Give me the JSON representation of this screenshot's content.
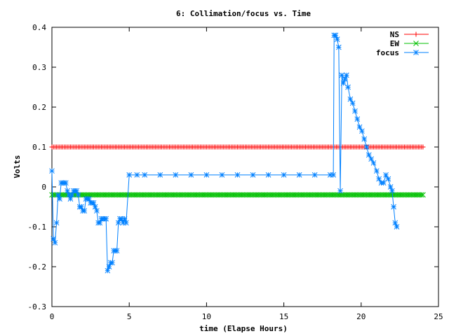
{
  "chart_data": {
    "type": "line",
    "title": "6: Collimation/focus vs. Time",
    "xlabel": "time (Elapse Hours)",
    "ylabel": "Volts",
    "xlim": [
      0,
      25
    ],
    "ylim": [
      -0.3,
      0.4
    ],
    "xticks": [
      "0",
      "5",
      "10",
      "15",
      "20",
      "25"
    ],
    "yticks": [
      "-0.3",
      "-0.2",
      "-0.1",
      "0",
      "0.1",
      "0.2",
      "0.3",
      "0.4"
    ],
    "grid": false,
    "legend_position": "top-right",
    "series": [
      {
        "name": "NS",
        "color": "#ff0000",
        "marker": "plus",
        "constant_y": 0.1,
        "x_range": [
          0,
          24
        ],
        "sample_step": 0.1
      },
      {
        "name": "EW",
        "color": "#00c000",
        "marker": "cross",
        "constant_y": -0.02,
        "x_range": [
          0,
          24
        ],
        "sample_step": 0.1
      },
      {
        "name": "focus",
        "color": "#0080ff",
        "marker": "star",
        "points": [
          [
            0.0,
            0.04
          ],
          [
            0.1,
            -0.13
          ],
          [
            0.2,
            -0.14
          ],
          [
            0.3,
            -0.09
          ],
          [
            0.4,
            -0.02
          ],
          [
            0.5,
            -0.03
          ],
          [
            0.6,
            0.01
          ],
          [
            0.7,
            0.01
          ],
          [
            0.8,
            0.01
          ],
          [
            0.9,
            0.01
          ],
          [
            1.0,
            -0.01
          ],
          [
            1.1,
            -0.02
          ],
          [
            1.2,
            -0.03
          ],
          [
            1.3,
            -0.02
          ],
          [
            1.4,
            -0.01
          ],
          [
            1.5,
            -0.01
          ],
          [
            1.6,
            -0.01
          ],
          [
            1.7,
            -0.02
          ],
          [
            1.8,
            -0.05
          ],
          [
            1.9,
            -0.05
          ],
          [
            2.0,
            -0.06
          ],
          [
            2.1,
            -0.06
          ],
          [
            2.2,
            -0.03
          ],
          [
            2.3,
            -0.03
          ],
          [
            2.4,
            -0.03
          ],
          [
            2.5,
            -0.04
          ],
          [
            2.6,
            -0.04
          ],
          [
            2.7,
            -0.04
          ],
          [
            2.8,
            -0.05
          ],
          [
            2.9,
            -0.06
          ],
          [
            3.0,
            -0.09
          ],
          [
            3.1,
            -0.09
          ],
          [
            3.2,
            -0.08
          ],
          [
            3.3,
            -0.08
          ],
          [
            3.4,
            -0.08
          ],
          [
            3.5,
            -0.08
          ],
          [
            3.6,
            -0.21
          ],
          [
            3.7,
            -0.2
          ],
          [
            3.8,
            -0.19
          ],
          [
            3.9,
            -0.19
          ],
          [
            4.0,
            -0.16
          ],
          [
            4.1,
            -0.16
          ],
          [
            4.2,
            -0.16
          ],
          [
            4.3,
            -0.09
          ],
          [
            4.4,
            -0.08
          ],
          [
            4.5,
            -0.08
          ],
          [
            4.6,
            -0.09
          ],
          [
            4.7,
            -0.08
          ],
          [
            4.8,
            -0.09
          ],
          [
            5.0,
            0.03
          ],
          [
            5.5,
            0.03
          ],
          [
            6.0,
            0.03
          ],
          [
            7.0,
            0.03
          ],
          [
            8.0,
            0.03
          ],
          [
            9.0,
            0.03
          ],
          [
            10.0,
            0.03
          ],
          [
            11.0,
            0.03
          ],
          [
            12.0,
            0.03
          ],
          [
            13.0,
            0.03
          ],
          [
            14.0,
            0.03
          ],
          [
            15.0,
            0.03
          ],
          [
            16.0,
            0.03
          ],
          [
            17.0,
            0.03
          ],
          [
            18.0,
            0.03
          ],
          [
            18.2,
            0.03
          ],
          [
            18.25,
            0.38
          ],
          [
            18.35,
            0.38
          ],
          [
            18.45,
            0.37
          ],
          [
            18.55,
            0.35
          ],
          [
            18.65,
            -0.01
          ],
          [
            18.75,
            0.28
          ],
          [
            18.85,
            0.26
          ],
          [
            18.95,
            0.27
          ],
          [
            19.05,
            0.28
          ],
          [
            19.15,
            0.25
          ],
          [
            19.3,
            0.22
          ],
          [
            19.45,
            0.21
          ],
          [
            19.6,
            0.19
          ],
          [
            19.75,
            0.17
          ],
          [
            19.9,
            0.15
          ],
          [
            20.05,
            0.14
          ],
          [
            20.2,
            0.12
          ],
          [
            20.35,
            0.1
          ],
          [
            20.5,
            0.08
          ],
          [
            20.65,
            0.07
          ],
          [
            20.8,
            0.06
          ],
          [
            21.0,
            0.04
          ],
          [
            21.15,
            0.02
          ],
          [
            21.3,
            0.01
          ],
          [
            21.45,
            0.01
          ],
          [
            21.6,
            0.03
          ],
          [
            21.75,
            0.02
          ],
          [
            21.9,
            0.0
          ],
          [
            22.0,
            -0.01
          ],
          [
            22.1,
            -0.05
          ],
          [
            22.2,
            -0.09
          ],
          [
            22.3,
            -0.1
          ]
        ]
      }
    ]
  }
}
